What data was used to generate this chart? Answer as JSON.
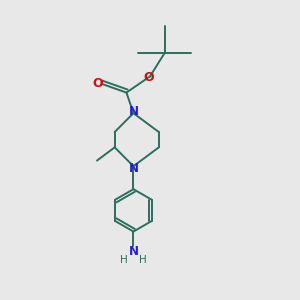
{
  "bg_color": "#e8e8e8",
  "bond_color": "#2d6e5e",
  "bond_width": 1.4,
  "N_color": "#2222cc",
  "O_color": "#cc1111",
  "figsize": [
    3.0,
    3.0
  ],
  "dpi": 100,
  "xlim": [
    0,
    10
  ],
  "ylim": [
    0,
    10
  ]
}
